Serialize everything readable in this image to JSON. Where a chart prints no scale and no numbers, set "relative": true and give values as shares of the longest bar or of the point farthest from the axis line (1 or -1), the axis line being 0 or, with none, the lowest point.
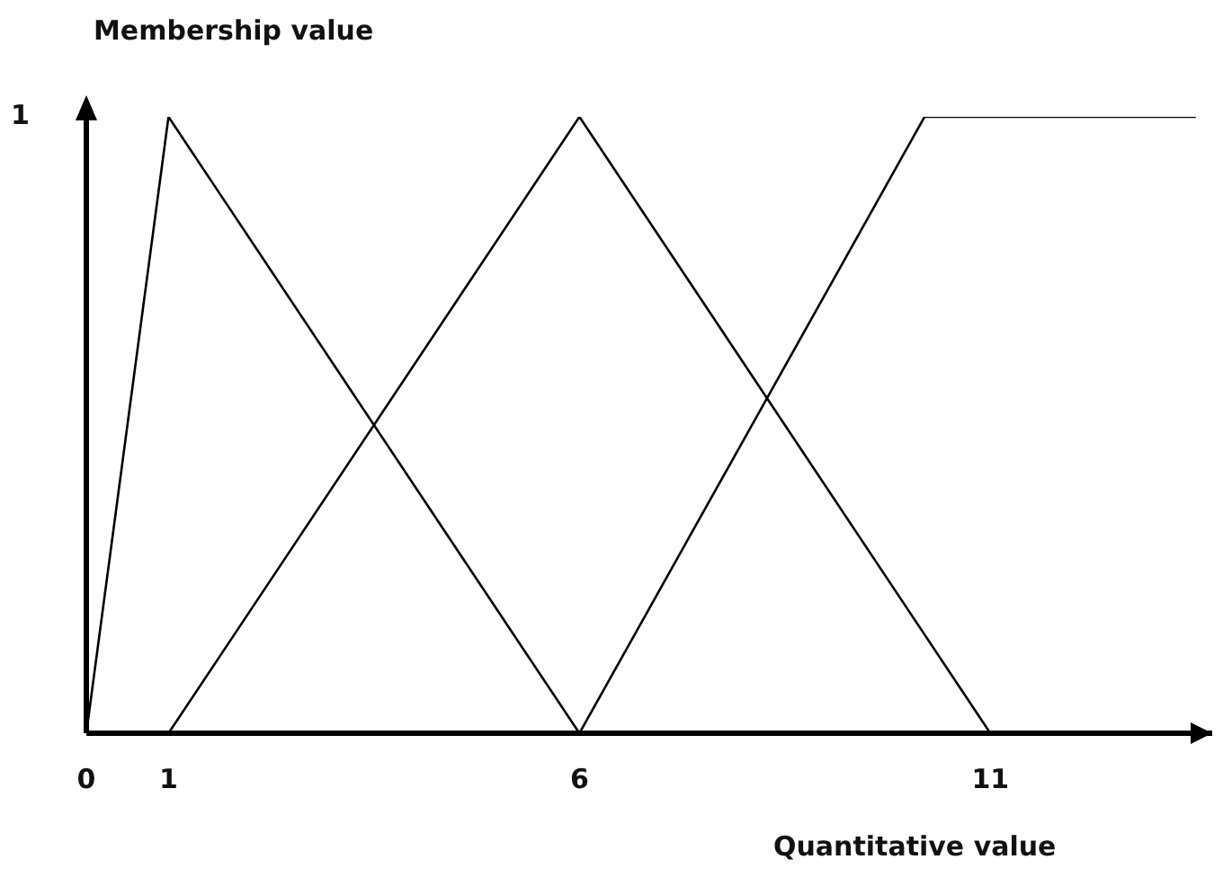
{
  "chart_data": {
    "type": "line",
    "title": "Membership value",
    "xlabel": "Quantitative value",
    "annotations": [
      "1"
    ],
    "xlim": [
      0,
      13.7
    ],
    "xticks": [
      0,
      1,
      6,
      11
    ],
    "relative": true,
    "series": [
      {
        "color": "#000000",
        "x": [
          0,
          1,
          6
        ],
        "values": [
          0,
          1,
          0
        ]
      },
      {
        "color": "#000000",
        "x": [
          1,
          6,
          11
        ],
        "values": [
          0,
          1,
          0
        ]
      },
      {
        "color": "#000000",
        "x": [
          6,
          10.2,
          13.5
        ],
        "values": [
          0,
          1,
          1
        ]
      }
    ],
    "grid": false,
    "marker": "none",
    "line_style": "solid"
  }
}
